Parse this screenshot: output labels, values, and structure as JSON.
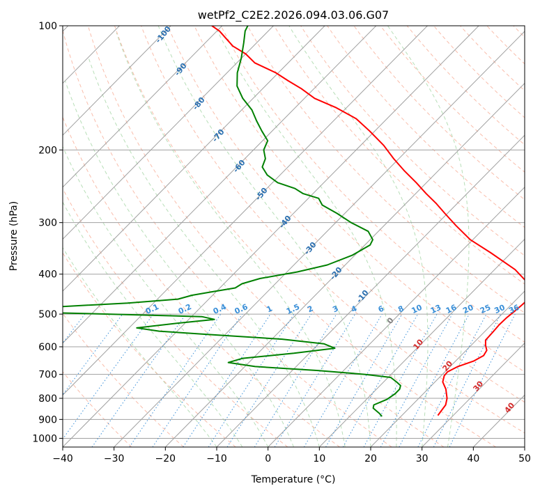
{
  "chart_data": {
    "type": "line",
    "title": "wetPf2_C2E2.2026.094.03.06.G07",
    "xlabel": "Temperature (°C)",
    "ylabel": "Pressure (hPa)",
    "xlim": [
      -40,
      50
    ],
    "ylim": [
      1050,
      100
    ],
    "y_scale": "log",
    "skew": true,
    "x_ticks": [
      -40,
      -30,
      -20,
      -10,
      0,
      10,
      20,
      30,
      40,
      50
    ],
    "y_ticks": [
      100,
      200,
      300,
      400,
      500,
      600,
      700,
      800,
      900,
      1000
    ],
    "grid": true,
    "series": [
      {
        "role": "temperature",
        "color": "#ff0000",
        "points": [
          [
            27.0,
            880
          ],
          [
            26.8,
            860
          ],
          [
            26.5,
            830
          ],
          [
            25.5,
            800
          ],
          [
            23.5,
            760
          ],
          [
            21.5,
            730
          ],
          [
            20.6,
            705
          ],
          [
            20.5,
            690
          ],
          [
            21.5,
            670
          ],
          [
            23.5,
            650
          ],
          [
            24.4,
            630
          ],
          [
            24.0,
            612
          ],
          [
            22.8,
            595
          ],
          [
            21.8,
            578
          ],
          [
            21.7,
            555
          ],
          [
            21.5,
            530
          ],
          [
            21.6,
            510
          ],
          [
            21.9,
            492
          ],
          [
            22.1,
            478
          ],
          [
            22.3,
            460
          ],
          [
            21.5,
            445
          ],
          [
            19.0,
            420
          ],
          [
            14.0,
            390
          ],
          [
            6.0,
            355
          ],
          [
            -0.5,
            330
          ],
          [
            -6.0,
            305
          ],
          [
            -10.5,
            285
          ],
          [
            -14.0,
            270
          ],
          [
            -18.0,
            255
          ],
          [
            -22.0,
            240
          ],
          [
            -26.5,
            225
          ],
          [
            -31.0,
            210
          ],
          [
            -35.5,
            195
          ],
          [
            -41.0,
            180
          ],
          [
            -46.0,
            168
          ],
          [
            -52.0,
            158
          ],
          [
            -58.0,
            150
          ],
          [
            -62.5,
            142
          ],
          [
            -66.5,
            136
          ],
          [
            -70.5,
            130
          ],
          [
            -76.5,
            123
          ],
          [
            -80.0,
            117
          ],
          [
            -84.0,
            112
          ],
          [
            -87.0,
            107
          ],
          [
            -89.5,
            103
          ],
          [
            -92.0,
            100
          ]
        ]
      },
      {
        "role": "dewpoint",
        "color": "#008000",
        "points": [
          [
            16.3,
            885
          ],
          [
            15.2,
            870
          ],
          [
            13.0,
            845
          ],
          [
            12.5,
            830
          ],
          [
            14.0,
            805
          ],
          [
            14.5,
            780
          ],
          [
            14.5,
            760
          ],
          [
            14.0,
            745
          ],
          [
            12.5,
            730
          ],
          [
            10.5,
            712
          ],
          [
            5.0,
            700
          ],
          [
            -5.0,
            685
          ],
          [
            -18.0,
            670
          ],
          [
            -24.0,
            655
          ],
          [
            -22.0,
            640
          ],
          [
            -13.0,
            622
          ],
          [
            -6.0,
            605
          ],
          [
            -9.0,
            590
          ],
          [
            -18.0,
            575
          ],
          [
            -33.5,
            560
          ],
          [
            -43.5,
            550
          ],
          [
            -48.5,
            540
          ],
          [
            -41.0,
            525
          ],
          [
            -35.0,
            515
          ],
          [
            -38.0,
            507
          ],
          [
            -62.0,
            498
          ],
          [
            -80.0,
            492
          ],
          [
            -68.0,
            480
          ],
          [
            -55.0,
            470
          ],
          [
            -46.0,
            460
          ],
          [
            -44.0,
            450
          ],
          [
            -41.0,
            442
          ],
          [
            -37.0,
            432
          ],
          [
            -36.5,
            422
          ],
          [
            -34.0,
            410
          ],
          [
            -28.0,
            395
          ],
          [
            -23.5,
            380
          ],
          [
            -20.5,
            360
          ],
          [
            -19.0,
            340
          ],
          [
            -19.5,
            330
          ],
          [
            -22.0,
            315
          ],
          [
            -27.0,
            300
          ],
          [
            -31.5,
            285
          ],
          [
            -36.0,
            272
          ],
          [
            -38.0,
            262
          ],
          [
            -42.0,
            255
          ],
          [
            -44.5,
            248
          ],
          [
            -49.0,
            240
          ],
          [
            -52.5,
            230
          ],
          [
            -55.0,
            220
          ],
          [
            -56.0,
            210
          ],
          [
            -58.0,
            200
          ],
          [
            -59.0,
            190
          ],
          [
            -62.0,
            180
          ],
          [
            -65.0,
            170
          ],
          [
            -68.0,
            160
          ],
          [
            -72.0,
            150
          ],
          [
            -75.5,
            140
          ],
          [
            -78.0,
            130
          ],
          [
            -80.0,
            120
          ],
          [
            -82.5,
            110
          ],
          [
            -84.5,
            103
          ],
          [
            -85.0,
            100
          ]
        ]
      }
    ],
    "dry_adiabat_labels": [
      "-100",
      "-90",
      "-80",
      "-70",
      "-60",
      "-50",
      "-40",
      "-30",
      "-20",
      "-10",
      "0",
      "10",
      "20",
      "30",
      "40"
    ],
    "mixing_ratio_labels": [
      "0.1",
      "0.2",
      "0.4",
      "0.6",
      "1",
      "1.5",
      "2",
      "3",
      "4",
      "6",
      "8",
      "10",
      "13",
      "16",
      "20",
      "25",
      "30",
      "36"
    ]
  }
}
